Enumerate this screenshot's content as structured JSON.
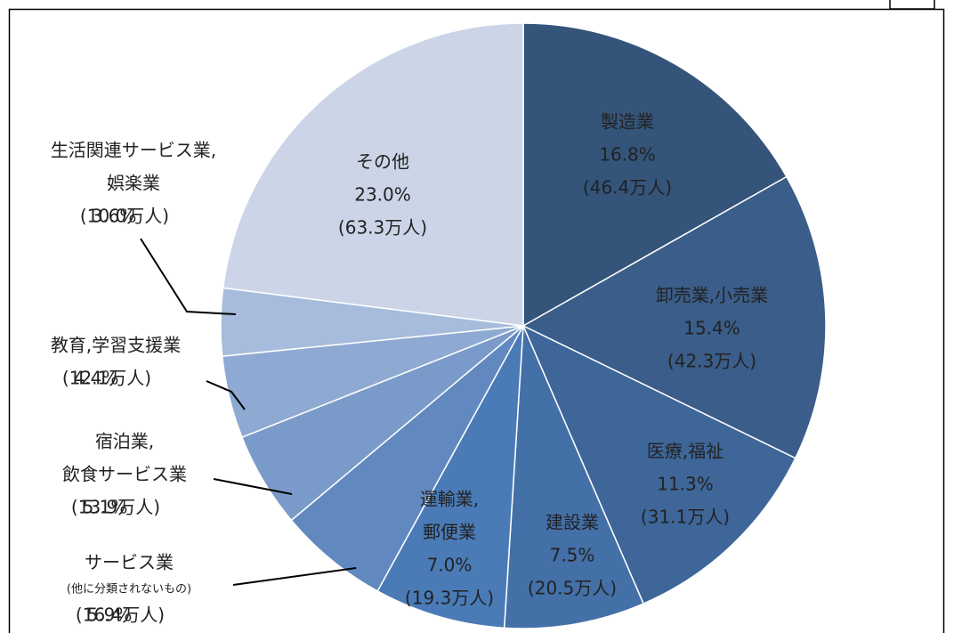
{
  "chart_data": {
    "type": "pie",
    "categories": [
      [
        "製造業"
      ],
      [
        "卸売業,小売業"
      ],
      [
        "医療,福祉"
      ],
      [
        "建設業"
      ],
      [
        "運輸業,",
        "郵便業"
      ],
      [
        "サービス業",
        "(他に分類されないもの)"
      ],
      [
        "宿泊業,",
        "飲食サービス業"
      ],
      [
        "教育,学習支援業"
      ],
      [
        "生活関連サービス業,",
        "娯楽業"
      ],
      [
        "その他"
      ]
    ],
    "values": [
      16.8,
      15.4,
      11.3,
      7.5,
      7.0,
      5.9,
      5.1,
      4.4,
      3.6,
      23.0
    ],
    "value_labels": [
      "16.8%",
      "15.4%",
      "11.3%",
      "7.5%",
      "7.0%",
      "5.9%",
      "5.1%",
      "4.4%",
      "3.6%",
      "23.0%"
    ],
    "count_labels": [
      "(46.4万人)",
      "(42.3万人)",
      "(31.1万人)",
      "(20.5万人)",
      "(19.3万人)",
      "(16.4万人)",
      "(13.9万人)",
      "(12.1万人)",
      "(10.0万人)",
      "(63.3万人)"
    ],
    "colors": [
      "#34547a",
      "#3a5d89",
      "#3e6698",
      "#4470a8",
      "#4a7bb7",
      "#6189c0",
      "#7a9bc9",
      "#8eaad2",
      "#a7bcdc",
      "#cbd5e7"
    ]
  }
}
